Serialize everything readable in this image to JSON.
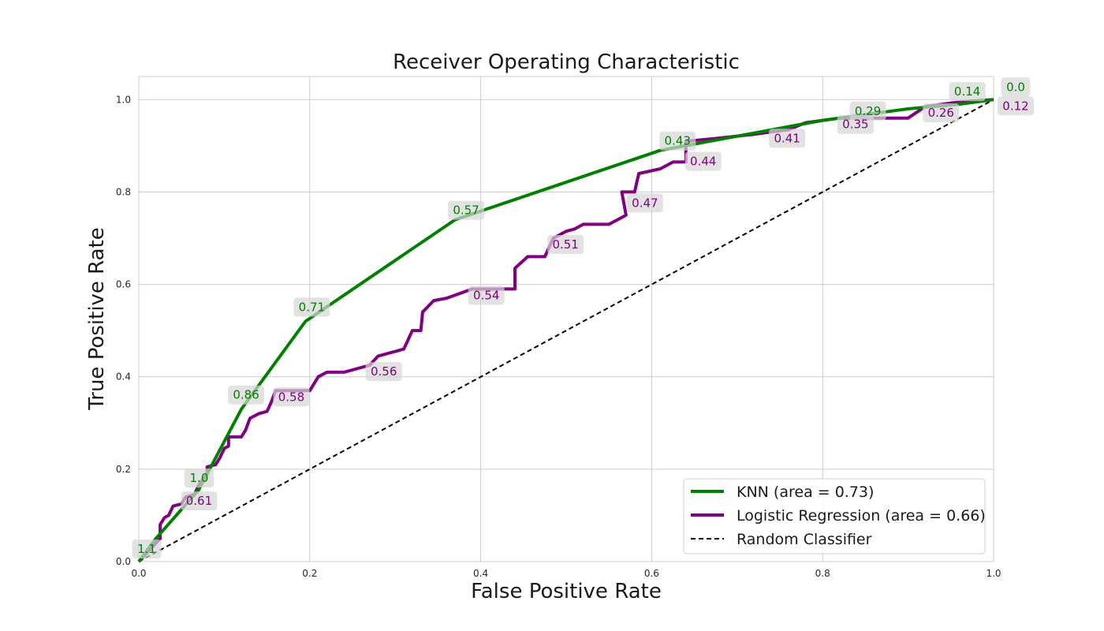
{
  "chart_data": {
    "type": "line",
    "title": "Receiver Operating Characteristic",
    "xlabel": "False Positive Rate",
    "ylabel": "True Positive Rate",
    "xlim": [
      0,
      1
    ],
    "ylim": [
      0,
      1.05
    ],
    "xticks": [
      "0.0",
      "0.2",
      "0.4",
      "0.6",
      "0.8",
      "1.0"
    ],
    "yticks": [
      "0.0",
      "0.2",
      "0.4",
      "0.6",
      "0.8",
      "1.0"
    ],
    "grid": true,
    "legend_position": "bottom-right",
    "series": [
      {
        "name": "KNN (area = 0.73)",
        "color": "#008000",
        "style": "solid",
        "points": [
          [
            0,
            0
          ],
          [
            0.02,
            0.05
          ],
          [
            0.07,
            0.155
          ],
          [
            0.12,
            0.33
          ],
          [
            0.195,
            0.52
          ],
          [
            0.37,
            0.74
          ],
          [
            0.61,
            0.89
          ],
          [
            0.8,
            0.955
          ],
          [
            0.9,
            0.98
          ],
          [
            0.96,
            0.99
          ],
          [
            1.0,
            1.0
          ]
        ],
        "threshold_labels": [
          {
            "label": "1.1",
            "x": 0.0,
            "y": 0.0
          },
          {
            "label": "1.0",
            "x": 0.065,
            "y": 0.15
          },
          {
            "label": "0.86",
            "x": 0.12,
            "y": 0.33
          },
          {
            "label": "0.71",
            "x": 0.195,
            "y": 0.52
          },
          {
            "label": "0.57",
            "x": 0.37,
            "y": 0.74
          },
          {
            "label": "0.43",
            "x": 0.61,
            "y": 0.89
          },
          {
            "label": "0.29",
            "x": 0.84,
            "y": 0.965
          },
          {
            "label": "0.14",
            "x": 0.96,
            "y": 0.99
          },
          {
            "label": "0.0",
            "x": 1.0,
            "y": 1.0
          }
        ]
      },
      {
        "name": "Logistic Regression (area = 0.66)",
        "color": "#800080",
        "style": "solid",
        "points": [
          [
            0,
            0
          ],
          [
            0.015,
            0.03
          ],
          [
            0.025,
            0.05
          ],
          [
            0.025,
            0.08
          ],
          [
            0.03,
            0.095
          ],
          [
            0.035,
            0.1
          ],
          [
            0.04,
            0.12
          ],
          [
            0.05,
            0.125
          ],
          [
            0.055,
            0.14
          ],
          [
            0.065,
            0.145
          ],
          [
            0.07,
            0.165
          ],
          [
            0.08,
            0.19
          ],
          [
            0.08,
            0.205
          ],
          [
            0.09,
            0.21
          ],
          [
            0.095,
            0.225
          ],
          [
            0.1,
            0.245
          ],
          [
            0.105,
            0.25
          ],
          [
            0.105,
            0.27
          ],
          [
            0.12,
            0.27
          ],
          [
            0.125,
            0.285
          ],
          [
            0.13,
            0.31
          ],
          [
            0.14,
            0.32
          ],
          [
            0.15,
            0.325
          ],
          [
            0.155,
            0.345
          ],
          [
            0.16,
            0.37
          ],
          [
            0.2,
            0.37
          ],
          [
            0.21,
            0.4
          ],
          [
            0.22,
            0.41
          ],
          [
            0.24,
            0.41
          ],
          [
            0.26,
            0.42
          ],
          [
            0.27,
            0.425
          ],
          [
            0.28,
            0.445
          ],
          [
            0.31,
            0.46
          ],
          [
            0.315,
            0.48
          ],
          [
            0.32,
            0.5
          ],
          [
            0.33,
            0.5
          ],
          [
            0.332,
            0.54
          ],
          [
            0.345,
            0.565
          ],
          [
            0.36,
            0.57
          ],
          [
            0.39,
            0.59
          ],
          [
            0.44,
            0.59
          ],
          [
            0.44,
            0.635
          ],
          [
            0.455,
            0.66
          ],
          [
            0.475,
            0.66
          ],
          [
            0.485,
            0.7
          ],
          [
            0.5,
            0.715
          ],
          [
            0.51,
            0.72
          ],
          [
            0.52,
            0.73
          ],
          [
            0.55,
            0.73
          ],
          [
            0.56,
            0.74
          ],
          [
            0.57,
            0.75
          ],
          [
            0.565,
            0.8
          ],
          [
            0.58,
            0.8
          ],
          [
            0.585,
            0.84
          ],
          [
            0.61,
            0.85
          ],
          [
            0.625,
            0.865
          ],
          [
            0.64,
            0.865
          ],
          [
            0.64,
            0.91
          ],
          [
            0.67,
            0.915
          ],
          [
            0.72,
            0.925
          ],
          [
            0.76,
            0.935
          ],
          [
            0.78,
            0.95
          ],
          [
            0.8,
            0.955
          ],
          [
            0.82,
            0.96
          ],
          [
            0.9,
            0.96
          ],
          [
            0.92,
            0.985
          ],
          [
            0.96,
            0.995
          ],
          [
            1.0,
            1.0
          ]
        ],
        "threshold_labels": [
          {
            "label": "0.61",
            "x": 0.065,
            "y": 0.145
          },
          {
            "label": "0.58",
            "x": 0.16,
            "y": 0.37
          },
          {
            "label": "0.56",
            "x": 0.27,
            "y": 0.425
          },
          {
            "label": "0.54",
            "x": 0.39,
            "y": 0.59
          },
          {
            "label": "0.51",
            "x": 0.49,
            "y": 0.7
          },
          {
            "label": "0.47",
            "x": 0.57,
            "y": 0.79
          },
          {
            "label": "0.44",
            "x": 0.64,
            "y": 0.88
          },
          {
            "label": "0.41",
            "x": 0.74,
            "y": 0.93
          },
          {
            "label": "0.35",
            "x": 0.82,
            "y": 0.96
          },
          {
            "label": "0.26",
            "x": 0.92,
            "y": 0.985
          },
          {
            "label": "0.12",
            "x": 1.0,
            "y": 1.0
          }
        ]
      },
      {
        "name": "Random Classifier",
        "color": "#000000",
        "style": "dashed",
        "points": [
          [
            0,
            0
          ],
          [
            1,
            1
          ]
        ],
        "threshold_labels": []
      }
    ]
  }
}
